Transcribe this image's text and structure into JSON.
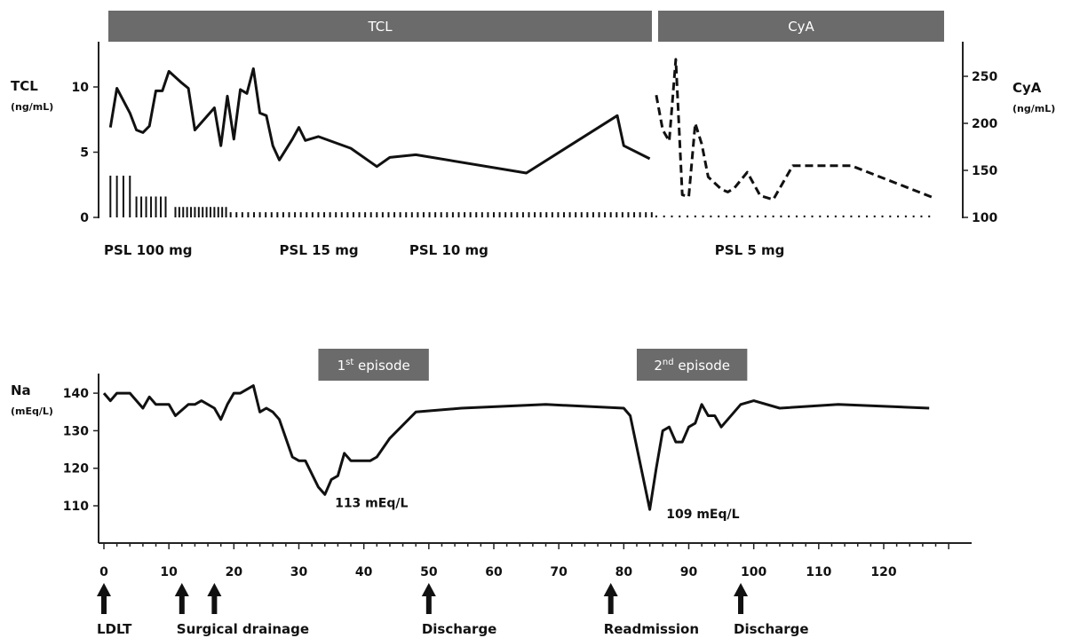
{
  "chart_data": [
    {
      "type": "line",
      "panel": "immunosuppression",
      "band_labels": [
        "TCL",
        "CyA"
      ],
      "left_axis": {
        "label": "TCL",
        "unit": "(ng/mL)",
        "ylim": [
          0,
          12.5
        ],
        "ticks": [
          0,
          5,
          10
        ]
      },
      "right_axis": {
        "label": "CyA",
        "unit": "(ng/mL)",
        "ylim": [
          100,
          280
        ],
        "ticks": [
          100,
          150,
          200,
          250
        ]
      },
      "xlim": [
        0,
        131
      ],
      "series": [
        {
          "axis": "left",
          "style": "solid",
          "points": [
            [
              1,
              6.9
            ],
            [
              2,
              9.9
            ],
            [
              4,
              8.0
            ],
            [
              5,
              6.7
            ],
            [
              6,
              6.5
            ],
            [
              7,
              7.0
            ],
            [
              8,
              9.7
            ],
            [
              9,
              9.7
            ],
            [
              10,
              11.2
            ],
            [
              12,
              10.3
            ],
            [
              13,
              9.9
            ],
            [
              14,
              6.7
            ],
            [
              17,
              8.4
            ],
            [
              18,
              5.5
            ],
            [
              19,
              9.3
            ],
            [
              20,
              6.0
            ],
            [
              21,
              9.8
            ],
            [
              22,
              9.5
            ],
            [
              23,
              11.4
            ],
            [
              24,
              8.0
            ],
            [
              25,
              7.8
            ],
            [
              26,
              5.5
            ],
            [
              27,
              4.4
            ],
            [
              29,
              6.0
            ],
            [
              30,
              6.9
            ],
            [
              31,
              5.9
            ],
            [
              33,
              6.2
            ],
            [
              38,
              5.3
            ],
            [
              42,
              3.9
            ],
            [
              44,
              4.6
            ],
            [
              48,
              4.8
            ],
            [
              65,
              3.4
            ],
            [
              79,
              7.8
            ],
            [
              80,
              5.5
            ],
            [
              84,
              4.5
            ]
          ]
        },
        {
          "axis": "right",
          "style": "dashed",
          "points": [
            [
              85,
              230
            ],
            [
              86,
              193
            ],
            [
              87,
              181
            ],
            [
              88,
              268
            ],
            [
              89,
              124
            ],
            [
              90,
              122
            ],
            [
              91,
              200
            ],
            [
              92,
              178
            ],
            [
              93,
              143
            ],
            [
              95,
              130
            ],
            [
              96,
              127
            ],
            [
              97,
              131
            ],
            [
              99,
              148
            ],
            [
              101,
              123
            ],
            [
              103,
              119
            ],
            [
              106,
              155
            ],
            [
              115,
              155
            ],
            [
              128,
              120
            ]
          ]
        }
      ],
      "dose_bars": {
        "segments": [
          {
            "from": 1,
            "to": 4,
            "height": 3.2,
            "spacing": 1
          },
          {
            "from": 5,
            "to": 10,
            "height": 1.6,
            "spacing": 0.75
          },
          {
            "from": 11,
            "to": 19,
            "height": 0.8,
            "spacing": 0.6
          },
          {
            "from": 19.5,
            "to": 85,
            "height": 0.4,
            "spacing": 0.9
          },
          {
            "from": 85,
            "to": 128,
            "height": 0.15,
            "spacing": 1.2
          }
        ]
      },
      "dose_labels": [
        {
          "text": "PSL 100 mg",
          "x": 0
        },
        {
          "text": "PSL 15 mg",
          "x": 27
        },
        {
          "text": "PSL 10 mg",
          "x": 47
        },
        {
          "text": "PSL 5 mg",
          "x": 94
        }
      ]
    },
    {
      "type": "line",
      "panel": "sodium",
      "ylabel": "Na",
      "yunit": "(mEq/L)",
      "ylim": [
        100,
        145
      ],
      "yticks": [
        110,
        120,
        130,
        140
      ],
      "xlim": [
        0,
        131
      ],
      "xticks": [
        0,
        10,
        20,
        30,
        40,
        50,
        60,
        70,
        80,
        90,
        100,
        110,
        120
      ],
      "episodes": [
        {
          "label": "1",
          "sup": "st",
          "rest": " episode",
          "from": 33,
          "to": 50
        },
        {
          "label": "2",
          "sup": "nd",
          "rest": " episode",
          "from": 82,
          "to": 99
        }
      ],
      "series": [
        {
          "style": "solid",
          "points": [
            [
              0,
              140
            ],
            [
              1,
              138
            ],
            [
              2,
              140
            ],
            [
              4,
              140
            ],
            [
              6,
              136
            ],
            [
              7,
              139
            ],
            [
              8,
              137
            ],
            [
              10,
              137
            ],
            [
              11,
              134
            ],
            [
              13,
              137
            ],
            [
              14,
              137
            ],
            [
              15,
              138
            ],
            [
              17,
              136
            ],
            [
              18,
              133
            ],
            [
              19,
              137
            ],
            [
              20,
              140
            ],
            [
              21,
              140
            ],
            [
              23,
              142
            ],
            [
              24,
              135
            ],
            [
              25,
              136
            ],
            [
              26,
              135
            ],
            [
              27,
              133
            ],
            [
              29,
              123
            ],
            [
              30,
              122
            ],
            [
              31,
              122
            ],
            [
              33,
              115
            ],
            [
              34,
              113
            ],
            [
              35,
              117
            ],
            [
              36,
              118
            ],
            [
              37,
              124
            ],
            [
              38,
              122
            ],
            [
              41,
              122
            ],
            [
              42,
              123
            ],
            [
              44,
              128
            ],
            [
              48,
              135
            ],
            [
              55,
              136
            ],
            [
              68,
              137
            ],
            [
              80,
              136
            ],
            [
              81,
              134
            ],
            [
              84,
              109
            ],
            [
              85,
              120
            ],
            [
              86,
              130
            ],
            [
              87,
              131
            ],
            [
              88,
              127
            ],
            [
              89,
              127
            ],
            [
              90,
              131
            ],
            [
              91,
              132
            ],
            [
              92,
              137
            ],
            [
              93,
              134
            ],
            [
              94,
              134
            ],
            [
              95,
              131
            ],
            [
              98,
              137
            ],
            [
              100,
              138
            ],
            [
              104,
              136
            ],
            [
              113,
              137
            ],
            [
              127,
              136
            ]
          ]
        }
      ],
      "annotations": [
        {
          "text": "113  mEq/L",
          "x": 35,
          "y": 112
        },
        {
          "text": "109  mEq/L",
          "x": 86,
          "y": 109
        }
      ],
      "events": [
        {
          "x": 0,
          "label": "LDLT",
          "arrow": true
        },
        {
          "x": 12,
          "label": "Surgical drainage",
          "arrow": true
        },
        {
          "x": 17,
          "label": "",
          "arrow": true
        },
        {
          "x": 50,
          "label": "Discharge",
          "arrow": true
        },
        {
          "x": 78,
          "label": "Readmission",
          "arrow": true
        },
        {
          "x": 98,
          "label": "Discharge",
          "arrow": true
        }
      ]
    }
  ]
}
